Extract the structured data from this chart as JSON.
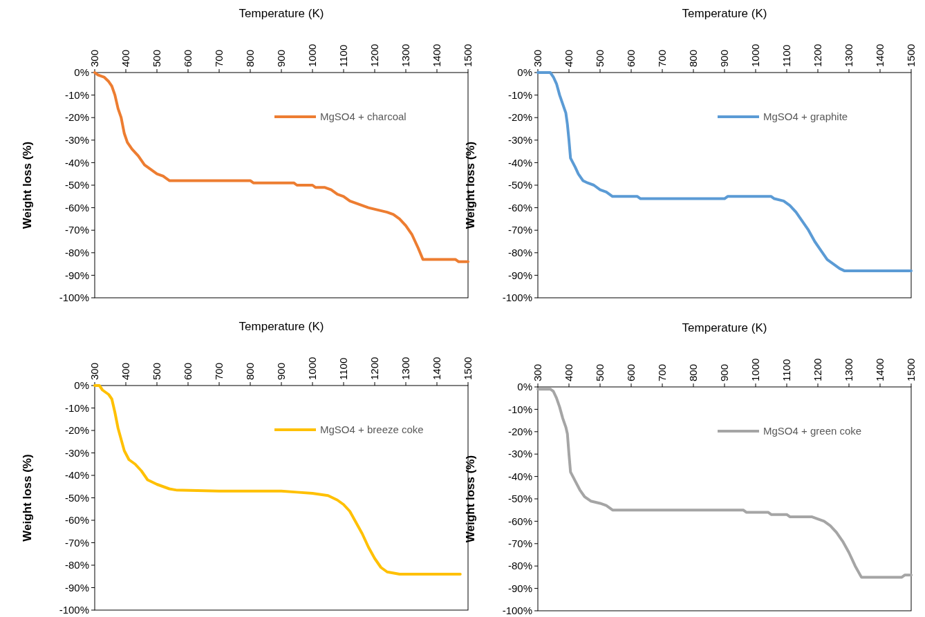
{
  "chart_data": [
    {
      "type": "line",
      "xlabel": "Temperature (K)",
      "ylabel": "Weight loss (%)",
      "xlim": [
        300,
        1500
      ],
      "ylim": [
        -100,
        0
      ],
      "xticks": [
        300,
        400,
        500,
        600,
        700,
        800,
        900,
        1000,
        1100,
        1200,
        1300,
        1400,
        1500
      ],
      "yticks": [
        {
          "value": 0,
          "label": "0%"
        },
        {
          "value": -10,
          "label": "-10%"
        },
        {
          "value": -20,
          "label": "-20%"
        },
        {
          "value": -30,
          "label": "-30%"
        },
        {
          "value": -40,
          "label": "-40%"
        },
        {
          "value": -50,
          "label": "-50%"
        },
        {
          "value": -60,
          "label": "-60%"
        },
        {
          "value": -70,
          "label": "-70%"
        },
        {
          "value": -80,
          "label": "-80%"
        },
        {
          "value": -90,
          "label": "-90%"
        },
        {
          "value": -100,
          "label": "-100%"
        }
      ],
      "grid": false,
      "legend": "top right",
      "marker": "none",
      "line_style": "solid",
      "series": [
        {
          "name": "MgSO4 + charcoal",
          "color": "#ed7d31",
          "x": [
            300,
            310,
            330,
            345,
            355,
            365,
            375,
            385,
            395,
            405,
            420,
            440,
            460,
            480,
            500,
            520,
            540,
            800,
            810,
            940,
            950,
            1000,
            1010,
            1040,
            1060,
            1080,
            1100,
            1120,
            1140,
            1160,
            1180,
            1210,
            1240,
            1260,
            1280,
            1300,
            1320,
            1340,
            1355,
            1460,
            1470,
            1500
          ],
          "values": [
            0,
            -1,
            -2,
            -4,
            -6,
            -10,
            -16,
            -20,
            -27,
            -31,
            -34,
            -37,
            -41,
            -43,
            -45,
            -46,
            -48,
            -48,
            -49,
            -49,
            -50,
            -50,
            -51,
            -51,
            -52,
            -54,
            -55,
            -57,
            -58,
            -59,
            -60,
            -61,
            -62,
            -63,
            -65,
            -68,
            -72,
            -78,
            -83,
            -83,
            -84,
            -84
          ]
        }
      ]
    },
    {
      "type": "line",
      "xlabel": "Temperature (K)",
      "ylabel": "Weight loss (%)",
      "xlim": [
        300,
        1500
      ],
      "ylim": [
        -100,
        0
      ],
      "xticks": [
        300,
        400,
        500,
        600,
        700,
        800,
        900,
        1000,
        1100,
        1200,
        1300,
        1400,
        1500
      ],
      "yticks": [
        {
          "value": 0,
          "label": "0%"
        },
        {
          "value": -10,
          "label": "-10%"
        },
        {
          "value": -20,
          "label": "-20%"
        },
        {
          "value": -30,
          "label": "-30%"
        },
        {
          "value": -40,
          "label": "-40%"
        },
        {
          "value": -50,
          "label": "-50%"
        },
        {
          "value": -60,
          "label": "-60%"
        },
        {
          "value": -70,
          "label": "-70%"
        },
        {
          "value": -80,
          "label": "-80%"
        },
        {
          "value": -90,
          "label": "-90%"
        },
        {
          "value": -100,
          "label": "-100%"
        }
      ],
      "grid": false,
      "legend": "top right",
      "marker": "none",
      "line_style": "solid",
      "series": [
        {
          "name": "MgSO4 + graphite",
          "color": "#5b9bd5",
          "x": [
            300,
            340,
            350,
            360,
            370,
            380,
            390,
            395,
            400,
            405,
            420,
            430,
            445,
            460,
            480,
            500,
            520,
            540,
            620,
            630,
            900,
            910,
            1050,
            1060,
            1090,
            1110,
            1130,
            1150,
            1170,
            1190,
            1210,
            1230,
            1250,
            1270,
            1285,
            1500
          ],
          "values": [
            0,
            0,
            -2,
            -5,
            -10,
            -14,
            -18,
            -23,
            -30,
            -38,
            -42,
            -45,
            -48,
            -49,
            -50,
            -52,
            -53,
            -55,
            -55,
            -56,
            -56,
            -55,
            -55,
            -56,
            -57,
            -59,
            -62,
            -66,
            -70,
            -75,
            -79,
            -83,
            -85,
            -87,
            -88,
            -88
          ]
        }
      ]
    },
    {
      "type": "line",
      "xlabel": "Temperature (K)",
      "ylabel": "Weight loss (%)",
      "xlim": [
        300,
        1500
      ],
      "ylim": [
        -100,
        0
      ],
      "xticks": [
        300,
        400,
        500,
        600,
        700,
        800,
        900,
        1000,
        1100,
        1200,
        1300,
        1400,
        1500
      ],
      "yticks": [
        {
          "value": 0,
          "label": "0%"
        },
        {
          "value": -10,
          "label": "-10%"
        },
        {
          "value": -20,
          "label": "-20%"
        },
        {
          "value": -30,
          "label": "-30%"
        },
        {
          "value": -40,
          "label": "-40%"
        },
        {
          "value": -50,
          "label": "-50%"
        },
        {
          "value": -60,
          "label": "-60%"
        },
        {
          "value": -70,
          "label": "-70%"
        },
        {
          "value": -80,
          "label": "-80%"
        },
        {
          "value": -90,
          "label": "-90%"
        },
        {
          "value": -100,
          "label": "-100%"
        }
      ],
      "grid": false,
      "legend": "top right",
      "marker": "none",
      "line_style": "solid",
      "series": [
        {
          "name": "MgSO4 + breeze coke",
          "color": "#ffc000",
          "x": [
            300,
            315,
            325,
            335,
            345,
            355,
            365,
            375,
            385,
            395,
            410,
            430,
            450,
            470,
            500,
            520,
            540,
            560,
            700,
            900,
            950,
            1000,
            1050,
            1080,
            1100,
            1120,
            1140,
            1160,
            1180,
            1200,
            1220,
            1240,
            1280,
            1475
          ],
          "values": [
            0,
            0,
            -2,
            -3,
            -4,
            -6,
            -12,
            -19,
            -24,
            -29,
            -33,
            -35,
            -38,
            -42,
            -44,
            -45,
            -46,
            -46.5,
            -47,
            -47,
            -47.5,
            -48,
            -49,
            -51,
            -53,
            -56,
            -61,
            -66,
            -72,
            -77,
            -81,
            -83,
            -84,
            -84
          ]
        }
      ]
    },
    {
      "type": "line",
      "xlabel": "Temperature (K)",
      "ylabel": "Weight loss (%)",
      "xlim": [
        300,
        1500
      ],
      "ylim": [
        -100,
        0
      ],
      "xticks": [
        300,
        400,
        500,
        600,
        700,
        800,
        900,
        1000,
        1100,
        1200,
        1300,
        1400,
        1500
      ],
      "yticks": [
        {
          "value": 0,
          "label": "0%"
        },
        {
          "value": -10,
          "label": "-10%"
        },
        {
          "value": -20,
          "label": "-20%"
        },
        {
          "value": -30,
          "label": "-30%"
        },
        {
          "value": -40,
          "label": "-40%"
        },
        {
          "value": -50,
          "label": "-50%"
        },
        {
          "value": -60,
          "label": "-60%"
        },
        {
          "value": -70,
          "label": "-70%"
        },
        {
          "value": -80,
          "label": "-80%"
        },
        {
          "value": -90,
          "label": "-90%"
        },
        {
          "value": -100,
          "label": "-100%"
        }
      ],
      "grid": false,
      "legend": "top right",
      "marker": "none",
      "line_style": "solid",
      "series": [
        {
          "name": "MgSO4 + green coke",
          "color": "#a5a5a5",
          "x": [
            300,
            320,
            340,
            350,
            360,
            370,
            380,
            390,
            395,
            400,
            405,
            420,
            435,
            450,
            470,
            500,
            520,
            540,
            900,
            960,
            970,
            1040,
            1050,
            1100,
            1110,
            1180,
            1200,
            1220,
            1240,
            1260,
            1280,
            1300,
            1320,
            1340,
            1470,
            1480,
            1500
          ],
          "values": [
            -1,
            -1,
            -1,
            -2,
            -5,
            -9,
            -14,
            -18,
            -21,
            -30,
            -38,
            -42,
            -46,
            -49,
            -51,
            -52,
            -53,
            -55,
            -55,
            -55,
            -56,
            -56,
            -57,
            -57,
            -58,
            -58,
            -59,
            -60,
            -62,
            -65,
            -69,
            -74,
            -80,
            -85,
            -85,
            -84,
            -84
          ]
        }
      ]
    }
  ]
}
